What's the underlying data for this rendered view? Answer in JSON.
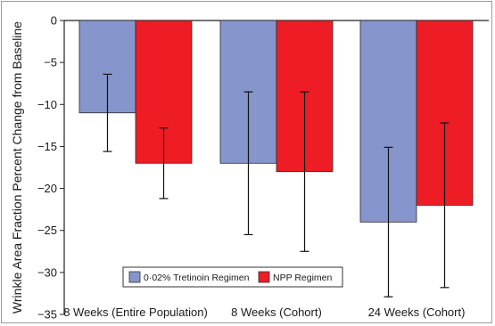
{
  "chart_data": {
    "type": "bar",
    "title": "",
    "xlabel": "",
    "ylabel": "Wrinkle Area Fraction Percent Change from Baseline",
    "ylim": [
      -35,
      0
    ],
    "yticks": [
      0,
      -5,
      -10,
      -15,
      -20,
      -25,
      -30,
      -35
    ],
    "grid": false,
    "legend_position": "bottom-left",
    "categories": [
      "8 Weeks (Entire Population)",
      "8 Weeks (Cohort)",
      "24 Weeks (Cohort)"
    ],
    "series": [
      {
        "name": "0·02% Tretinoin Regimen",
        "color": "#8696cc",
        "values": [
          -11,
          -17,
          -24
        ],
        "error_low": [
          -15.6,
          -25.5,
          -32.9
        ],
        "error_high": [
          -6.4,
          -8.5,
          -15.1
        ]
      },
      {
        "name": "NPP Regimen",
        "color": "#ee1c25",
        "values": [
          -17,
          -18,
          -22
        ],
        "error_low": [
          -21.2,
          -27.5,
          -31.8
        ],
        "error_high": [
          -12.8,
          -8.5,
          -12.2
        ]
      }
    ]
  }
}
